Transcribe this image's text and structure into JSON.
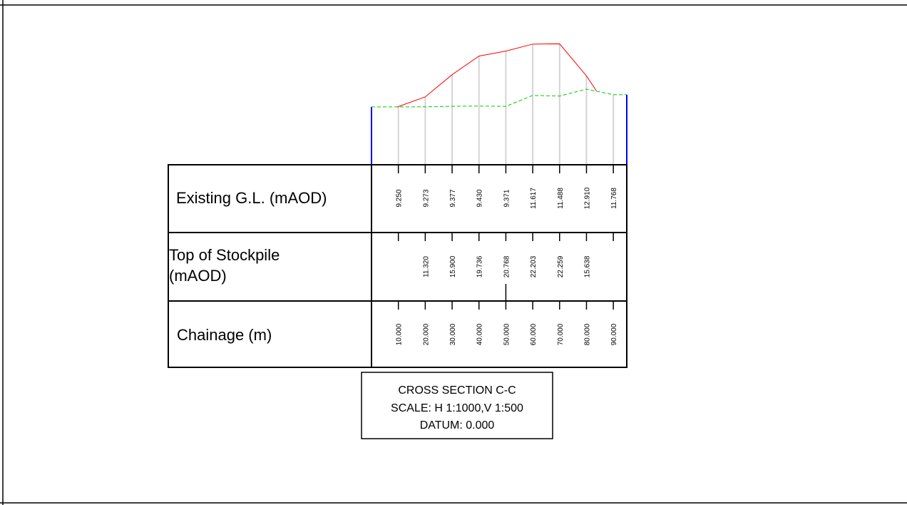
{
  "rows": {
    "existing_label": "Existing G.L. (mAOD)",
    "stockpile_label_line1": "Top of Stockpile",
    "stockpile_label_line2": "(mAOD)",
    "chainage_label": "Chainage (m)"
  },
  "title_block": {
    "line1": "CROSS SECTION C-C",
    "line2": "SCALE: H 1:1000,V 1:500",
    "line3": "DATUM: 0.000"
  },
  "chart_data": {
    "type": "line",
    "chainage": [
      "10.000",
      "20.000",
      "30.000",
      "40.000",
      "50.000",
      "60.000",
      "70.000",
      "80.000",
      "90.000"
    ],
    "existing_gl": [
      "9.250",
      "9.273",
      "9.377",
      "9.430",
      "9.371",
      "11.617",
      "11.488",
      "12.910",
      "11.768"
    ],
    "top_of_stockpile": [
      "",
      "11.320",
      "15.900",
      "19.736",
      "20.768",
      "22.203",
      "22.259",
      "15.638",
      ""
    ],
    "series": [
      {
        "key": "existing",
        "color": "#00cc00",
        "style": "dashed"
      },
      {
        "key": "stockpile",
        "color": "#ff0000",
        "style": "solid"
      }
    ],
    "datum": 0,
    "datum_text": "0.000"
  }
}
